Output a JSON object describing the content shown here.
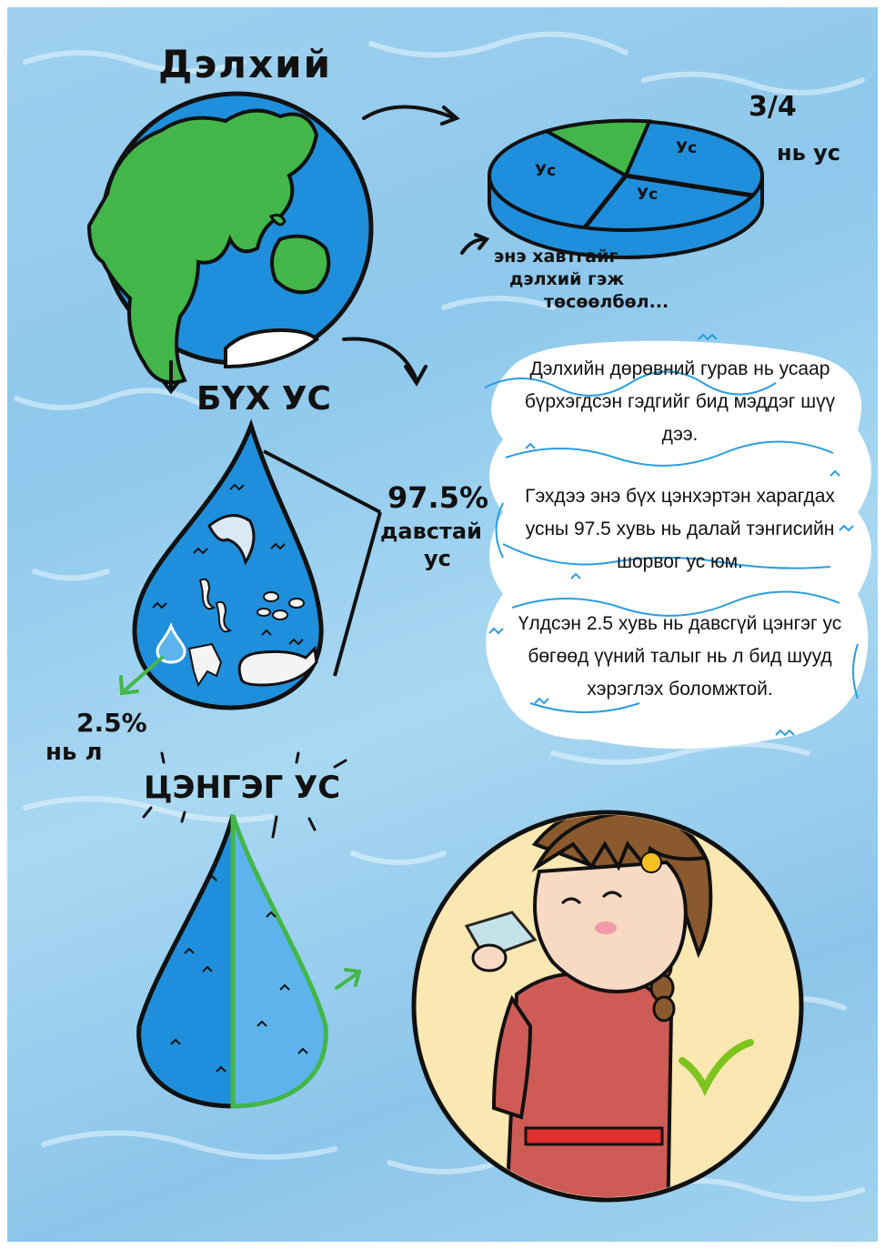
{
  "title": "Дэлхий",
  "pie": {
    "fraction": "3/4",
    "fraction_note": "нь ус",
    "slice_label": "Ус",
    "water_share": 0.75,
    "caption_lines": [
      "энэ хавтгайг",
      "дэлхий гэж",
      "төсөөлбөл..."
    ]
  },
  "all_water": {
    "heading": "БҮХ УС",
    "salt_percent": "97.5%",
    "salt_label_lines": [
      "давстай",
      "ус"
    ],
    "fresh_percent": "2.5%",
    "fresh_note": "нь л"
  },
  "fresh_water": {
    "heading": "ЦЭНГЭГ УС",
    "usable_share": 0.5
  },
  "paragraphs": [
    "Дэлхийн дөрөвний гурав нь усаар бүрхэгдсэн гэдгийг бид мэддэг шүү дээ.",
    "Гэхдээ энэ бүх цэнхэртэн харагдах усны 97.5 хувь нь далай тэнгисийн шорвог ус юм.",
    "Үлдсэн 2.5 хувь нь давсгүй цэнгэг ус бөгөөд үүний талыг нь л бид шууд хэрэглэх боломжтой."
  ],
  "colors": {
    "water_blue": "#1f8fdc",
    "land_green": "#43b649",
    "fresh_light": "#5db3ec",
    "circle_bg": "#fbe7b2",
    "check_green": "#7dc41f",
    "dress_red": "#cf5b56"
  }
}
